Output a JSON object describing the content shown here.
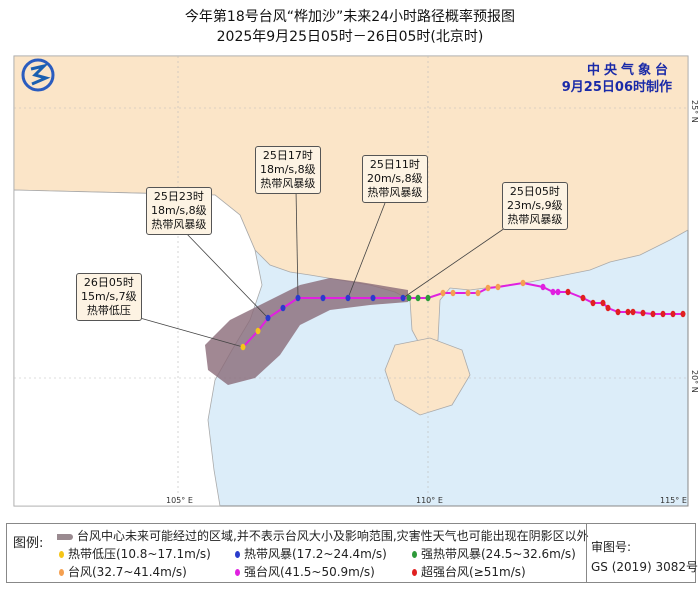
{
  "title": {
    "line1": "今年第18号台风“桦加沙”未来24小时路径概率预报图",
    "line2": "2025年9月25日05时－26日05时(北京时)"
  },
  "agency": {
    "name": "中央气象台",
    "issued": "9月25日06时制作"
  },
  "axes": {
    "lon": [
      "105° E",
      "110° E",
      "115° E"
    ],
    "lat": [
      "25° N",
      "20° N"
    ]
  },
  "callouts": [
    {
      "time": "25日05时",
      "wind": "23m/s,9级",
      "level": "热带风暴级"
    },
    {
      "time": "25日11时",
      "wind": "20m/s,8级",
      "level": "热带风暴级"
    },
    {
      "time": "25日17时",
      "wind": "18m/s,8级",
      "level": "热带风暴级"
    },
    {
      "time": "25日23时",
      "wind": "18m/s,8级",
      "level": "热带风暴级"
    },
    {
      "time": "26日05时",
      "wind": "15m/s,7级",
      "level": "热带低压"
    }
  ],
  "legend": {
    "label": "图例:",
    "cone": "台风中心未来可能经过的区域,并不表示台风大小及影响范围,灾害性天气也可能出现在阴影区以外",
    "items": [
      {
        "text": "热带低压(10.8~17.1m/s)",
        "color": "#f5c518"
      },
      {
        "text": "热带风暴(17.2~24.4m/s)",
        "color": "#2a3ccc"
      },
      {
        "text": "强热带风暴(24.5~32.6m/s)",
        "color": "#2e9a3a"
      },
      {
        "text": "台风(32.7~41.4m/s)",
        "color": "#f5a050"
      },
      {
        "text": "强台风(41.5~50.9m/s)",
        "color": "#e020e0"
      },
      {
        "text": "超强台风(≥51m/s)",
        "color": "#e02020"
      }
    ]
  },
  "review": {
    "label": "审图号:",
    "number": "GS (2019) 3082号"
  },
  "colors": {
    "land": "#fbe5c8",
    "sea": "#dcedf9",
    "cone": "#8a6a78",
    "track": "#e020e0"
  }
}
